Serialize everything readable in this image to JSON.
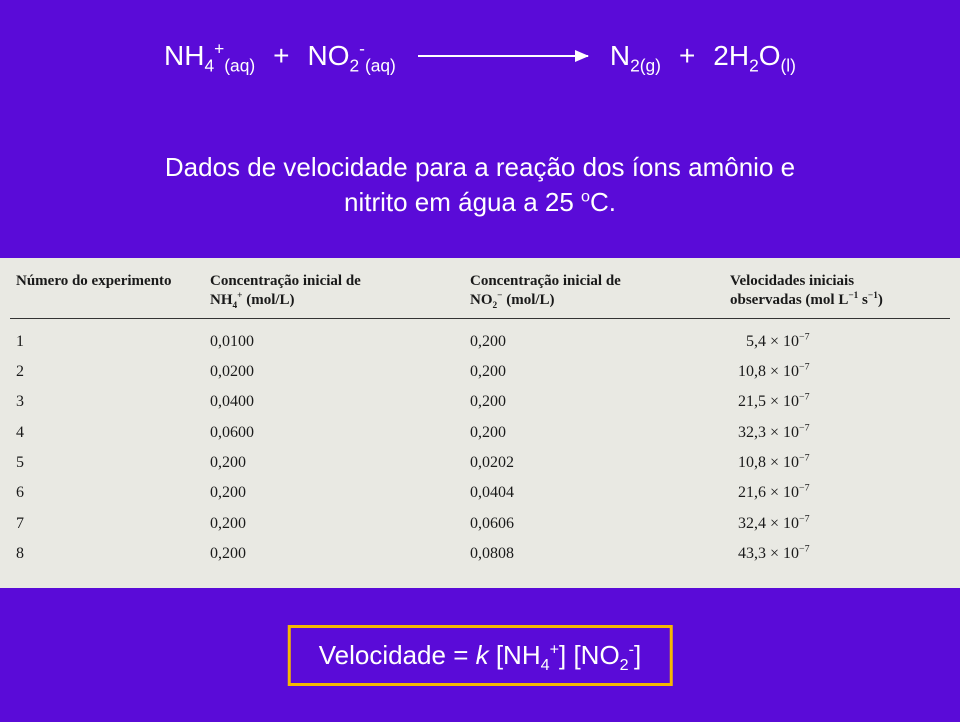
{
  "colors": {
    "slide_bg": "#5a0bd8",
    "text_on_bg": "#ffffff",
    "table_bg": "#e9e9e3",
    "table_text": "#1a1a1a",
    "table_rule": "#333333",
    "box_border": "#f5b800"
  },
  "equation": {
    "r1": "NH",
    "r1_sub": "4",
    "r1_sup": "+",
    "r1_phase": "(aq)",
    "plus1": "+",
    "r2": "NO",
    "r2_sub": "2",
    "r2_sup": "-",
    "r2_phase": "(aq)",
    "p1": "N",
    "p1_sub": "2(g)",
    "plus2": "+",
    "p2a": "2H",
    "p2a_sub": "2",
    "p2b": "O",
    "p2_phase": "(l)"
  },
  "caption_line1": "Dados de velocidade para a reação dos íons amônio e",
  "caption_line2_a": "nitrito em água a 25 ",
  "caption_line2_b": "o",
  "caption_line2_c": "C.",
  "table": {
    "headers": {
      "h1": "Número do experimento",
      "h2a": "Concentração inicial de",
      "h2b_species": "NH",
      "h2b_sub": "4",
      "h2b_sup": "+",
      "h2b_unit": " (mol/L)",
      "h3a": "Concentração inicial de",
      "h3b_species": "NO",
      "h3b_sub": "2",
      "h3b_sup": "−",
      "h3b_unit": " (mol/L)",
      "h4a": "Velocidades iniciais",
      "h4b": "observadas (mol L",
      "h4b_sup1": "−1",
      "h4b_mid": " s",
      "h4b_sup2": "−1",
      "h4b_end": ")"
    },
    "rows": [
      {
        "n": "1",
        "nh4": "0,0100",
        "no2": "0,200",
        "rate_mantissa": "5,4",
        "rate_exp": "−7"
      },
      {
        "n": "2",
        "nh4": "0,0200",
        "no2": "0,200",
        "rate_mantissa": "10,8",
        "rate_exp": "−7"
      },
      {
        "n": "3",
        "nh4": "0,0400",
        "no2": "0,200",
        "rate_mantissa": "21,5",
        "rate_exp": "−7"
      },
      {
        "n": "4",
        "nh4": "0,0600",
        "no2": "0,200",
        "rate_mantissa": "32,3",
        "rate_exp": "−7"
      },
      {
        "n": "5",
        "nh4": "0,200",
        "no2": "0,0202",
        "rate_mantissa": "10,8",
        "rate_exp": "−7"
      },
      {
        "n": "6",
        "nh4": "0,200",
        "no2": "0,0404",
        "rate_mantissa": "21,6",
        "rate_exp": "−7"
      },
      {
        "n": "7",
        "nh4": "0,200",
        "no2": "0,0606",
        "rate_mantissa": "32,4",
        "rate_exp": "−7"
      },
      {
        "n": "8",
        "nh4": "0,200",
        "no2": "0,0808",
        "rate_mantissa": "43,3",
        "rate_exp": "−7"
      }
    ],
    "times_sym": "×",
    "ten": "10"
  },
  "formula": {
    "lhs": "Velocidade = ",
    "k": "k",
    "mid": " [NH",
    "sub1": "4",
    "sup1": "+",
    "mid2": "] [NO",
    "sub2": "2",
    "sup2": "-",
    "end": "]"
  }
}
